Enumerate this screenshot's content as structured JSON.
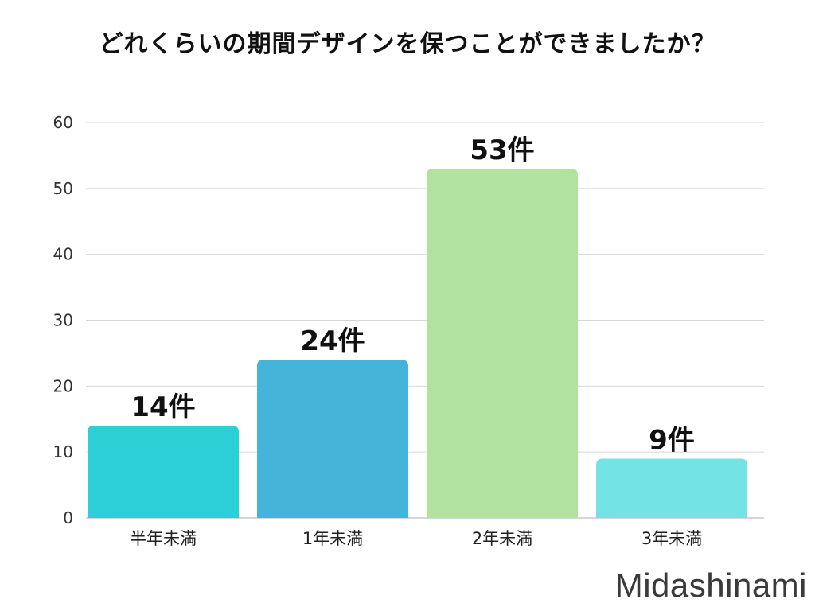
{
  "brand": "Midashinami",
  "chart_data": {
    "type": "bar",
    "title": "どれくらいの期間デザインを保つことができましたか？",
    "categories": [
      "半年未満",
      "1年未満",
      "2年未満",
      "3年未満"
    ],
    "values": [
      14,
      24,
      53,
      9
    ],
    "value_labels": [
      "14件",
      "24件",
      "53件",
      "9件"
    ],
    "ylim": [
      0,
      60
    ],
    "yticks": [
      0,
      10,
      20,
      30,
      40,
      50,
      60
    ],
    "xlabel": "",
    "ylabel": "",
    "grid": true,
    "legend": "none",
    "colors": [
      "#2ccfd6",
      "#44b4d8",
      "#b2e2a0",
      "#74e3e6"
    ],
    "grid_color": "#d6d6d6",
    "axis_color": "#c8c8c8"
  }
}
